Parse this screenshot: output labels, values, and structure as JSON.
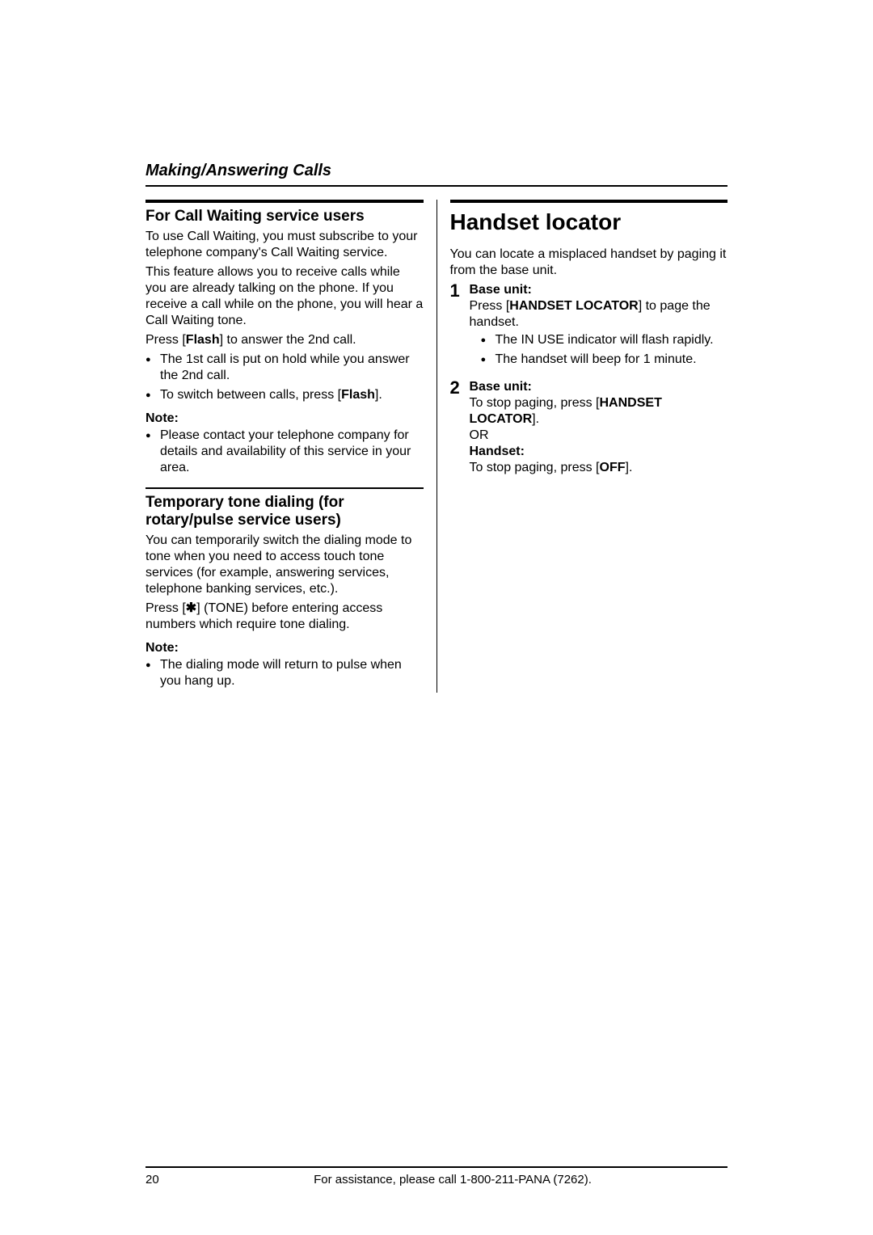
{
  "header": {
    "section_title": "Making/Answering Calls"
  },
  "left_col": {
    "call_waiting": {
      "heading": "For Call Waiting service users",
      "para1": "To use Call Waiting, you must subscribe to your telephone company's Call Waiting service.",
      "para2_a": "This feature allows you to receive calls while you are already talking on the phone. If you receive a call while on the phone, you will hear a Call Waiting tone.",
      "para2_b_pre": "Press ",
      "para2_b_key": "Flash",
      "para2_b_post": " to answer the 2nd call.",
      "bullets": [
        "The 1st call is put on hold while you answer the 2nd call."
      ],
      "bullet2_pre": "To switch between calls, press ",
      "bullet2_key": "Flash",
      "bullet2_post": ".",
      "note_label": "Note:",
      "note_bullets": [
        "Please contact your telephone company for details and availability of this service in your area."
      ]
    },
    "tone_dialing": {
      "heading": "Temporary tone dialing (for rotary/pulse service users)",
      "para1": "You can temporarily switch the dialing mode to tone when you need to access touch tone services (for example, answering services, telephone banking services, etc.).",
      "para2_pre": "Press ",
      "para2_key": "✱",
      "para2_mid": " (TONE) before entering access numbers which require tone dialing.",
      "note_label": "Note:",
      "note_bullets": [
        "The dialing mode will return to pulse when you hang up."
      ]
    }
  },
  "right_col": {
    "heading": "Handset locator",
    "intro": "You can locate a misplaced handset by paging it from the base unit.",
    "steps": [
      {
        "num": "1",
        "title": "Base unit:",
        "line1_pre": "Press ",
        "line1_key": "HANDSET LOCATOR",
        "line1_post": " to page the handset.",
        "sub_bullets": [
          "The IN USE indicator will flash rapidly.",
          "The handset will beep for 1 minute."
        ]
      },
      {
        "num": "2",
        "title": "Base unit:",
        "line1_pre": "To stop paging, press ",
        "line1_key": "HANDSET LOCATOR",
        "line1_post": ".",
        "or": "OR",
        "title2": "Handset:",
        "line2_pre": "To stop paging, press ",
        "line2_key": "OFF",
        "line2_post": "."
      }
    ]
  },
  "footer": {
    "page_number": "20",
    "assist_text": "For assistance, please call 1-800-211-PANA (7262)."
  }
}
